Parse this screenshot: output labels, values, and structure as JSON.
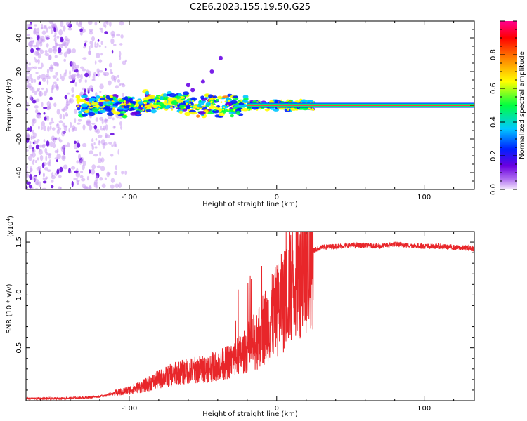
{
  "title": "C2E6.2023.155.19.50.G25",
  "chart_data": [
    {
      "type": "heatmap",
      "xlabel": "Height of straight line (km)",
      "ylabel": "Frequency (Hz)",
      "xlim": [
        -170,
        134
      ],
      "ylim": [
        -50,
        50
      ],
      "x_ticks": [
        -100,
        0,
        100
      ],
      "y_ticks": [
        -40,
        -20,
        0,
        20,
        40
      ],
      "colorbar": {
        "label": "Normalized spectral amplitude",
        "range": [
          0,
          1
        ],
        "ticks": [
          0.0,
          0.2,
          0.4,
          0.6,
          0.8
        ],
        "colormap": [
          "#f2e6fa",
          "#6a00e0",
          "#0020ff",
          "#00c8ff",
          "#00ff40",
          "#ffff00",
          "#ff8000",
          "#ff0000",
          "#ff0090"
        ]
      },
      "features": {
        "carrier_line": {
          "x_start": -135,
          "x_end": 134,
          "frequency": 0,
          "amplitude_peak": 0.95
        },
        "scatter_band_x": [
          -170,
          -110
        ],
        "drift_blobs": [
          [
            -38,
            28
          ],
          [
            -44,
            20
          ],
          [
            -50,
            14
          ],
          [
            -57,
            9
          ],
          [
            -60,
            12
          ]
        ]
      }
    },
    {
      "type": "line",
      "xlabel": "Height of straight line (km)",
      "ylabel": "SNR (10 * v/v)",
      "y_scale_label": "(x10",
      "y_scale_exp": "4",
      "y_scale_close": ")",
      "xlim": [
        -170,
        134
      ],
      "ylim": [
        0,
        1.6
      ],
      "x_ticks": [
        -100,
        0,
        100
      ],
      "y_ticks": [
        0.5,
        1.0,
        1.5
      ],
      "y_tick_labels": [
        "0.5",
        "1.0",
        "1.5"
      ],
      "color": "#e8262a",
      "series": [
        {
          "x": [
            -170,
            -150,
            -130,
            -120,
            -110,
            -100,
            -90,
            -80,
            -70,
            -60,
            -50,
            -40,
            -30,
            -20,
            -15,
            -10,
            -5,
            0,
            5,
            10,
            15,
            20,
            25,
            30,
            40,
            50,
            60,
            70,
            80,
            90,
            100,
            110,
            120,
            134
          ],
          "values": [
            0.02,
            0.02,
            0.03,
            0.04,
            0.07,
            0.1,
            0.14,
            0.2,
            0.25,
            0.28,
            0.3,
            0.33,
            0.38,
            0.48,
            0.55,
            0.68,
            0.75,
            0.85,
            0.95,
            1.1,
            1.22,
            1.32,
            1.42,
            1.45,
            1.46,
            1.47,
            1.47,
            1.46,
            1.48,
            1.47,
            1.46,
            1.46,
            1.45,
            1.44
          ]
        }
      ]
    }
  ]
}
